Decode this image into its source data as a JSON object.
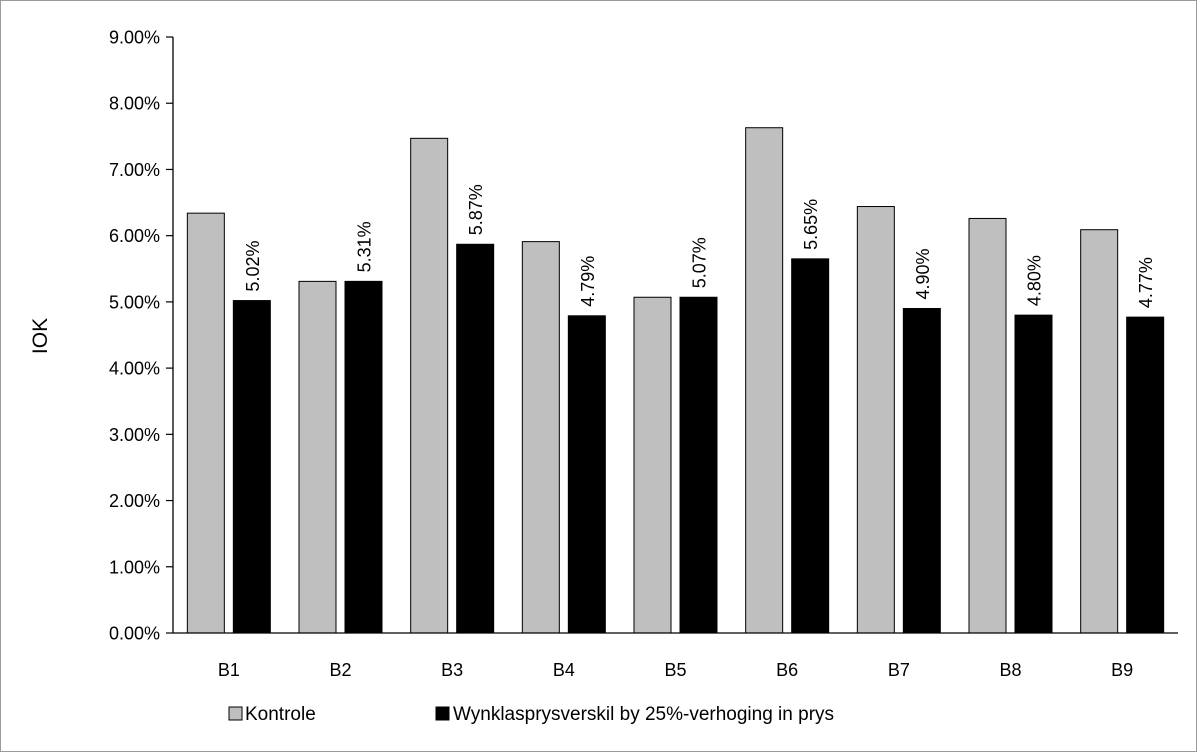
{
  "chart_data": {
    "type": "bar",
    "title": "",
    "xlabel": "",
    "ylabel": "IOK",
    "ylim": [
      0,
      0.09
    ],
    "yticks": [
      0,
      0.01,
      0.02,
      0.03,
      0.04,
      0.05,
      0.06,
      0.07,
      0.08,
      0.09
    ],
    "ytick_labels": [
      "0.00%",
      "1.00%",
      "2.00%",
      "3.00%",
      "4.00%",
      "5.00%",
      "6.00%",
      "7.00%",
      "8.00%",
      "9.00%"
    ],
    "categories": [
      "B1",
      "B2",
      "B3",
      "B4",
      "B5",
      "B6",
      "B7",
      "B8",
      "B9"
    ],
    "grid": false,
    "legend_position": "bottom",
    "series": [
      {
        "name": "Kontrole",
        "color": "#bfbfbf",
        "values": [
          0.0634,
          0.0531,
          0.0747,
          0.0591,
          0.0507,
          0.0763,
          0.0644,
          0.0626,
          0.0609
        ]
      },
      {
        "name": "Wynklasprysverskil by 25%-verhoging in prys",
        "color": "#000000",
        "values": [
          0.0502,
          0.0531,
          0.0587,
          0.0479,
          0.0507,
          0.0565,
          0.049,
          0.048,
          0.0477
        ],
        "data_labels": [
          "5.02%",
          "5.31%",
          "5.87%",
          "4.79%",
          "5.07%",
          "5.65%",
          "4.90%",
          "4.80%",
          "4.77%"
        ]
      }
    ]
  }
}
